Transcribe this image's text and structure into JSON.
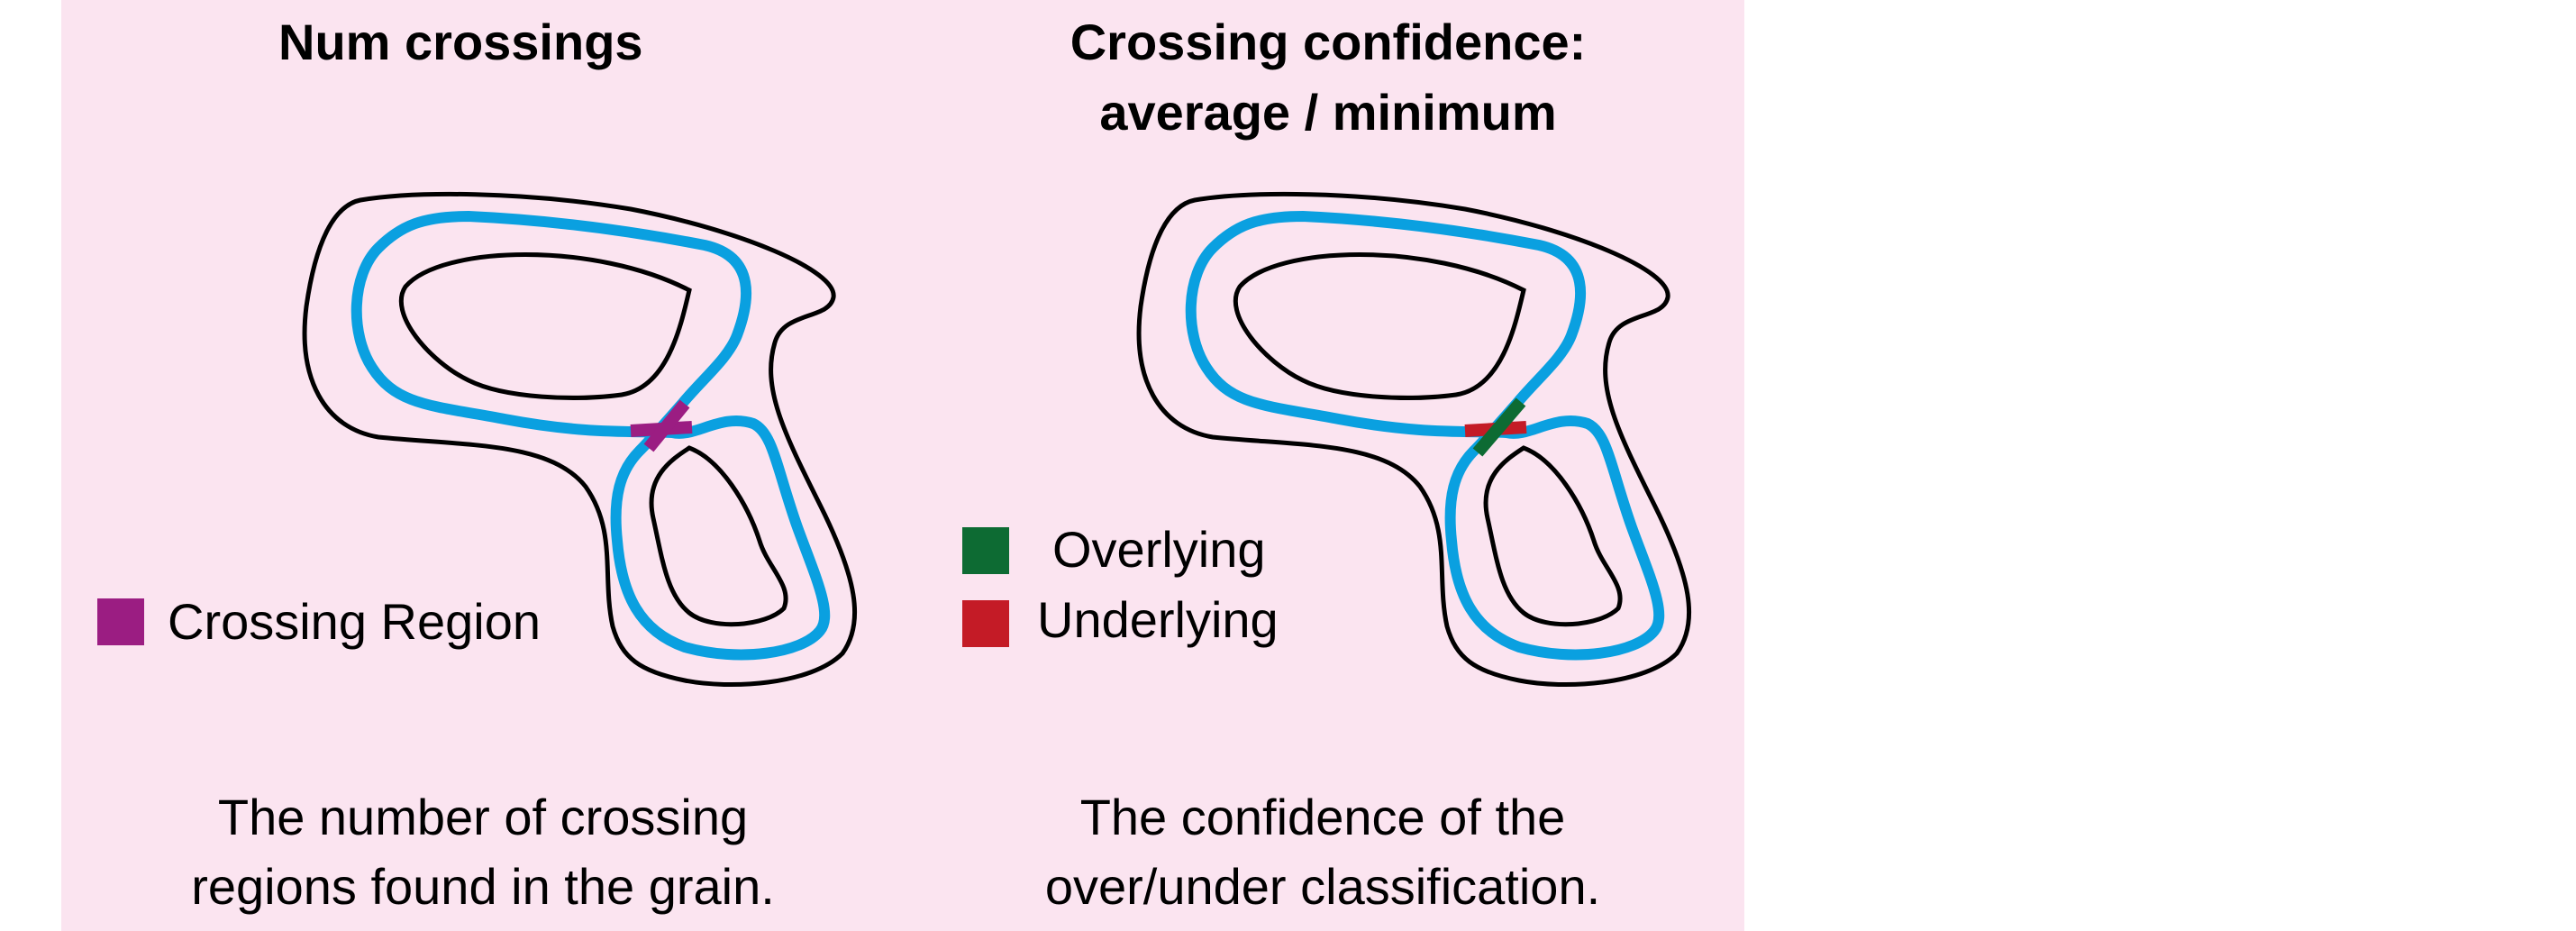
{
  "colors": {
    "background": "#fbe4f0",
    "grain_outline": "#000000",
    "trace": "#0aa0e0",
    "crossing_region": "#9b1d82",
    "overlying": "#0d6b33",
    "underlying": "#c41b26"
  },
  "panels": [
    {
      "title_lines": [
        "Num crossings"
      ],
      "legend": [
        {
          "label": "Crossing Region",
          "color_key": "crossing_region"
        }
      ],
      "caption_lines": [
        "The number of crossing",
        "regions found in the grain."
      ]
    },
    {
      "title_lines": [
        "Crossing confidence:",
        "average / minimum"
      ],
      "legend": [
        {
          "label": "Overlying",
          "color_key": "overlying"
        },
        {
          "label": "Underlying",
          "color_key": "underlying"
        }
      ],
      "caption_lines": [
        "The confidence of the",
        "over/under classification."
      ]
    }
  ]
}
